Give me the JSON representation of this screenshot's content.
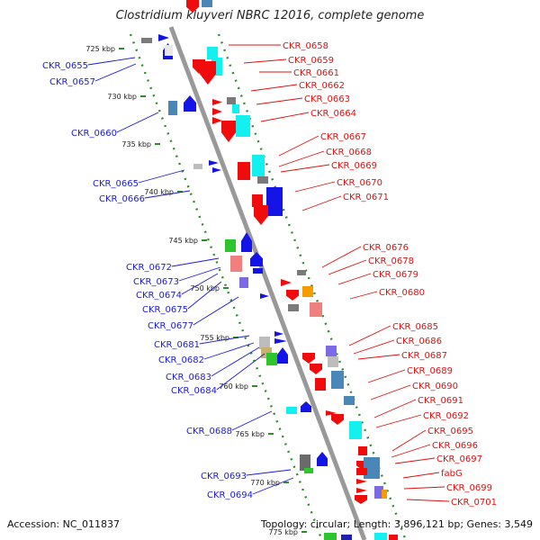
{
  "title": "Clostridium kluyveri NBRC 12016, complete genome",
  "accession": "Accession: NC_011837",
  "topology": "Topology: circular; Length: 3,896,121 bp; Genes: 3,549",
  "ruler_ticks": [
    "725 kbp",
    "730 kbp",
    "735 kbp",
    "740 kbp",
    "745 kbp",
    "750 kbp",
    "755 kbp",
    "760 kbp",
    "765 kbp",
    "770 kbp",
    "775 kbp"
  ],
  "left_labels": [
    "CKR_0655",
    "CKR_0657",
    "CKR_0660",
    "CKR_0665",
    "CKR_0666",
    "CKR_0672",
    "CKR_0673",
    "CKR_0674",
    "CKR_0675",
    "CKR_0677",
    "CKR_0681",
    "CKR_0682",
    "CKR_0683",
    "CKR_0684",
    "CKR_0688",
    "CKR_0693",
    "CKR_0694"
  ],
  "right_labels": [
    "CKR_0658",
    "CKR_0659",
    "CKR_0661",
    "CKR_0662",
    "CKR_0663",
    "CKR_0664",
    "CKR_0667",
    "CKR_0668",
    "CKR_0669",
    "CKR_0670",
    "CKR_0671",
    "CKR_0676",
    "CKR_0678",
    "CKR_0679",
    "CKR_0680",
    "CKR_0685",
    "CKR_0686",
    "CKR_0687",
    "CKR_0689",
    "CKR_0690",
    "CKR_0691",
    "CKR_0692",
    "CKR_0695",
    "CKR_0696",
    "CKR_0697",
    "fabG",
    "CKR_0699",
    "CKR_0701"
  ],
  "colors": {
    "forward": "#e01010",
    "reverse": "#1a1adc",
    "backbone": "#999999",
    "gc_dots": "#2e8b2e"
  }
}
